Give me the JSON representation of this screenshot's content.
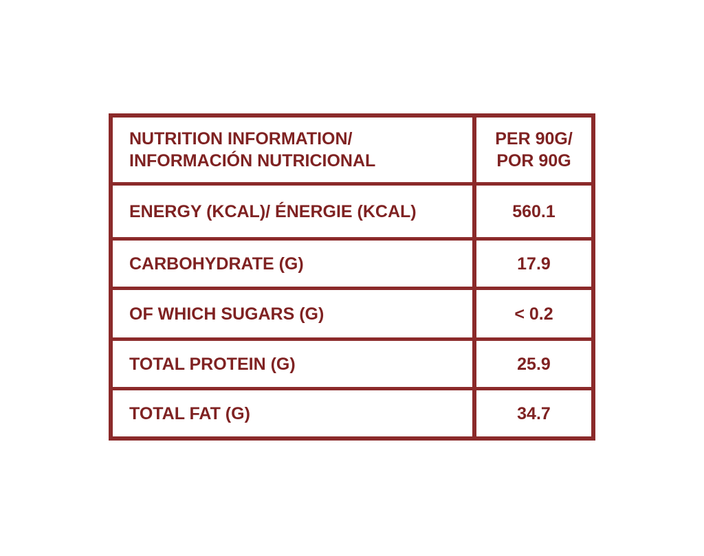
{
  "table": {
    "header": {
      "title": [
        "NUTRITION INFORMATION/",
        "INFORMACIÓN NUTRICIONAL"
      ],
      "serving": [
        "PER 90G/",
        "POR 90G"
      ]
    },
    "rows": [
      [
        "ENERGY (KCAL)/ ÉNERGIE (KCAL)",
        "560.1"
      ],
      [
        "CARBOHYDRATE (G)",
        "17.9"
      ],
      [
        "OF WHICH SUGARS (G)",
        "< 0.2"
      ],
      [
        "TOTAL PROTEIN (G)",
        "25.9"
      ],
      [
        "TOTAL FAT (G)",
        "34.7"
      ]
    ]
  }
}
